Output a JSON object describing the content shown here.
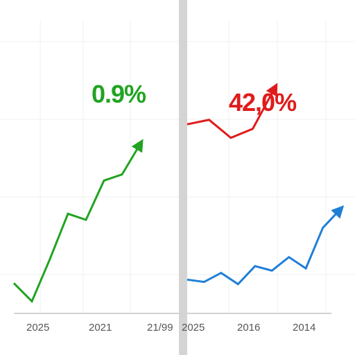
{
  "colors": {
    "left_series": "#22a322",
    "right_upper_series": "#e01b1b",
    "right_lower_series": "#1f7fd6",
    "divider": "#d4d4d4",
    "grid": "#eef0f0",
    "axis": "#b9b9b9",
    "tick_text": "#555555",
    "accent_tick": "#2e9b2e"
  },
  "chart_data": [
    {
      "type": "line",
      "title": "",
      "xlabel": "",
      "ylabel": "",
      "x_ticks": [
        "2025",
        "2021",
        "21/99"
      ],
      "series": [
        {
          "color": "#22a322",
          "values": [
            0.0,
            -0.6,
            0.8,
            2.3,
            2.1,
            3.4,
            3.6,
            4.6
          ],
          "end_arrow": true
        }
      ],
      "annotations": [
        {
          "text": "0.9%",
          "color": "#22a322"
        }
      ],
      "ylim": [
        -1,
        8
      ],
      "grid": true
    },
    {
      "type": "line",
      "title": "",
      "xlabel": "",
      "ylabel": "",
      "x_ticks": [
        "2025",
        "2016",
        "2014"
      ],
      "series": [
        {
          "color": "#e01b1b",
          "values": [
            7.4,
            7.6,
            6.8,
            7.2,
            9.0
          ],
          "end_arrow": true
        },
        {
          "color": "#1f7fd6",
          "values": [
            0.5,
            0.4,
            0.8,
            0.3,
            1.1,
            0.9,
            1.5,
            1.0,
            2.8,
            3.6
          ],
          "end_arrow": true
        }
      ],
      "annotations": [
        {
          "text": "42,0%",
          "color": "#e01b1b"
        }
      ],
      "ylim": [
        -1,
        12
      ],
      "grid": true
    }
  ]
}
